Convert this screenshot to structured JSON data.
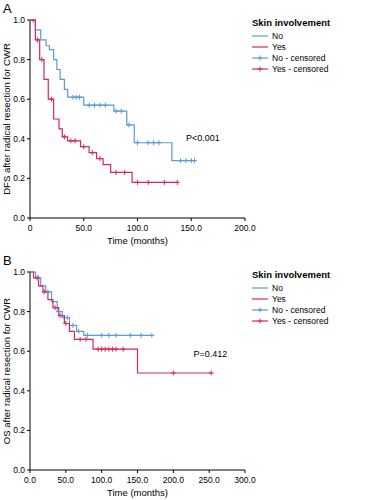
{
  "chart_data": [
    {
      "type": "line",
      "panel_label": "A",
      "y_label": "DFS after radical resection for CWR",
      "x_label": "Time (months)",
      "legend_title": "Skin involvement",
      "legend": "right",
      "grid": false,
      "xlim": [
        0,
        200
      ],
      "ylim": [
        0,
        1
      ],
      "xticks": [
        0,
        {
          "value": 50,
          "label": "50.0"
        },
        {
          "value": 100,
          "label": "100.0"
        },
        {
          "value": 150,
          "label": "150.0"
        },
        {
          "value": 200,
          "label": "200.0"
        }
      ],
      "yticks": [
        {
          "value": 0,
          "label": "0.0"
        },
        0.2,
        0.4,
        0.6,
        0.8,
        {
          "value": 1,
          "label": "1.0"
        }
      ],
      "annotations": [
        {
          "text": "P<0.001",
          "x": 145,
          "y": 0.39
        }
      ],
      "series": [
        {
          "name": "No",
          "type": "line",
          "line_style": "step",
          "color": "#5b9bd5",
          "x": [
            0,
            5,
            10,
            15,
            18,
            22,
            25,
            28,
            32,
            35,
            50,
            78,
            90,
            97,
            132,
            153
          ],
          "values": [
            1,
            0.95,
            0.9,
            0.87,
            0.85,
            0.8,
            0.75,
            0.7,
            0.65,
            0.61,
            0.57,
            0.54,
            0.47,
            0.38,
            0.29,
            0.29
          ]
        },
        {
          "name": "Yes",
          "type": "line",
          "line_style": "step",
          "color": "#d42a5b",
          "x": [
            0,
            5,
            9,
            13,
            17,
            22,
            27,
            30,
            35,
            47,
            55,
            62,
            68,
            75,
            95,
            137
          ],
          "values": [
            1,
            0.9,
            0.8,
            0.7,
            0.6,
            0.5,
            0.45,
            0.41,
            0.39,
            0.36,
            0.33,
            0.3,
            0.27,
            0.23,
            0.18,
            0.18
          ]
        },
        {
          "name": "No - censored",
          "type": "scatter",
          "marker": "plus",
          "color": "#5b9bd5",
          "x": [
            40,
            43,
            46,
            55,
            60,
            65,
            70,
            80,
            85,
            92,
            100,
            110,
            115,
            120,
            140,
            145,
            150,
            153
          ],
          "values": [
            0.61,
            0.61,
            0.61,
            0.57,
            0.57,
            0.57,
            0.57,
            0.54,
            0.54,
            0.47,
            0.38,
            0.38,
            0.38,
            0.38,
            0.29,
            0.29,
            0.29,
            0.29
          ]
        },
        {
          "name": "Yes - censored",
          "type": "scatter",
          "marker": "plus",
          "color": "#d42a5b",
          "x": [
            3,
            7,
            11,
            20,
            32,
            38,
            42,
            50,
            58,
            65,
            80,
            88,
            100,
            110,
            125,
            137
          ],
          "values": [
            1,
            0.9,
            0.8,
            0.6,
            0.41,
            0.39,
            0.39,
            0.36,
            0.33,
            0.3,
            0.23,
            0.23,
            0.18,
            0.18,
            0.18,
            0.18
          ]
        }
      ]
    },
    {
      "type": "line",
      "panel_label": "B",
      "y_label": "OS after radical resection for CWR",
      "x_label": "Time (months)",
      "legend_title": "Skin involvement",
      "legend": "right",
      "grid": false,
      "xlim": [
        0,
        300
      ],
      "ylim": [
        0,
        1
      ],
      "xticks": [
        {
          "value": 0,
          "label": "0.0"
        },
        {
          "value": 50,
          "label": "50.0"
        },
        {
          "value": 100,
          "label": "100.0"
        },
        {
          "value": 150,
          "label": "150.0"
        },
        {
          "value": 200,
          "label": "200.0"
        },
        {
          "value": 250,
          "label": "250.0"
        },
        {
          "value": 300,
          "label": "300.0"
        }
      ],
      "yticks": [
        {
          "value": 0,
          "label": "0.0"
        },
        0.2,
        0.4,
        0.6,
        0.8,
        {
          "value": 1,
          "label": "1.0"
        }
      ],
      "annotations": [
        {
          "text": "P=0.412",
          "x": 228,
          "y": 0.57
        }
      ],
      "series": [
        {
          "name": "No",
          "type": "line",
          "line_style": "step",
          "color": "#5b9bd5",
          "x": [
            0,
            8,
            15,
            22,
            30,
            38,
            45,
            55,
            65,
            75,
            170
          ],
          "values": [
            1,
            0.97,
            0.93,
            0.9,
            0.85,
            0.8,
            0.77,
            0.73,
            0.7,
            0.68,
            0.68
          ]
        },
        {
          "name": "Yes",
          "type": "line",
          "line_style": "step",
          "color": "#d42a5b",
          "x": [
            0,
            5,
            12,
            18,
            25,
            32,
            40,
            48,
            55,
            62,
            88,
            150,
            253
          ],
          "values": [
            1,
            0.97,
            0.93,
            0.9,
            0.86,
            0.82,
            0.78,
            0.74,
            0.7,
            0.66,
            0.61,
            0.49,
            0.49
          ]
        },
        {
          "name": "No - censored",
          "type": "scatter",
          "marker": "plus",
          "color": "#5b9bd5",
          "x": [
            12,
            25,
            40,
            52,
            60,
            68,
            80,
            100,
            110,
            120,
            140,
            155,
            170
          ],
          "values": [
            0.97,
            0.9,
            0.8,
            0.77,
            0.73,
            0.7,
            0.68,
            0.68,
            0.68,
            0.68,
            0.68,
            0.68,
            0.68
          ]
        },
        {
          "name": "Yes - censored",
          "type": "scatter",
          "marker": "plus",
          "color": "#d42a5b",
          "x": [
            10,
            20,
            35,
            42,
            50,
            70,
            78,
            95,
            100,
            105,
            110,
            115,
            120,
            130,
            200,
            253
          ],
          "values": [
            0.97,
            0.9,
            0.82,
            0.78,
            0.74,
            0.66,
            0.66,
            0.61,
            0.61,
            0.61,
            0.61,
            0.61,
            0.61,
            0.61,
            0.49,
            0.49
          ]
        }
      ]
    }
  ]
}
